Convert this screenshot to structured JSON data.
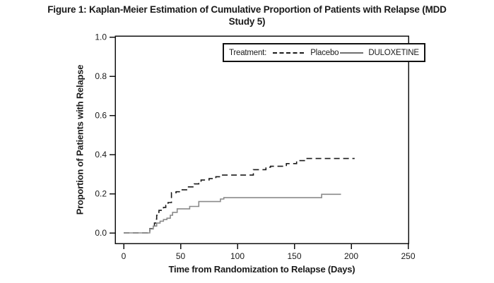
{
  "header": {
    "line1": "Figure 1: Kaplan-Meier Estimation of Cumulative Proportion of Patients with Relapse (MDD",
    "line2": "Study 5)"
  },
  "legend": {
    "title": "Treatment:",
    "entries": [
      {
        "label": "Placebo",
        "style": "dashed"
      },
      {
        "label": "DULOXETINE",
        "style": "solid"
      }
    ]
  },
  "chart_data": {
    "type": "line",
    "variant": "kaplan-meier-step",
    "title": "Figure 1: Kaplan-Meier Estimation of Cumulative Proportion of Patients with Relapse (MDD Study 5)",
    "xlabel": "Time from Randomization to Relapse (Days)",
    "ylabel": "Proportion of Patients with Relapse",
    "xlim": [
      0,
      250
    ],
    "ylim": [
      0.0,
      1.0
    ],
    "x_ticks": [
      0,
      50,
      100,
      150,
      200,
      250
    ],
    "y_ticks": [
      0.0,
      0.2,
      0.4,
      0.6,
      0.8,
      1.0
    ],
    "grid": false,
    "legend_position": "top-right-inside",
    "colors": {
      "placebo_line": "#1a1a1a",
      "duloxetine_line": "#8a8a8a",
      "frame": "#111111"
    },
    "series": [
      {
        "name": "Placebo",
        "line_style": "dashed",
        "color": "#1a1a1a",
        "points": [
          [
            0,
            0
          ],
          [
            20,
            0
          ],
          [
            21,
            0.01
          ],
          [
            23,
            0.022
          ],
          [
            25,
            0.035
          ],
          [
            27,
            0.05
          ],
          [
            28,
            0.07
          ],
          [
            29,
            0.09
          ],
          [
            30,
            0.105
          ],
          [
            31,
            0.115
          ],
          [
            33,
            0.125
          ],
          [
            35,
            0.13
          ],
          [
            37,
            0.14
          ],
          [
            39,
            0.155
          ],
          [
            42,
            0.205
          ],
          [
            46,
            0.21
          ],
          [
            50,
            0.22
          ],
          [
            56,
            0.235
          ],
          [
            62,
            0.25
          ],
          [
            66,
            0.26
          ],
          [
            68,
            0.27
          ],
          [
            75,
            0.277
          ],
          [
            81,
            0.287
          ],
          [
            85,
            0.295
          ],
          [
            114,
            0.323
          ],
          [
            125,
            0.335
          ],
          [
            129,
            0.34
          ],
          [
            143,
            0.354
          ],
          [
            152,
            0.369
          ],
          [
            160,
            0.38
          ],
          [
            203,
            0.38
          ]
        ]
      },
      {
        "name": "DULOXETINE",
        "line_style": "solid",
        "color": "#8a8a8a",
        "points": [
          [
            0,
            0
          ],
          [
            21,
            0
          ],
          [
            23,
            0.02
          ],
          [
            26,
            0.035
          ],
          [
            29,
            0.05
          ],
          [
            32,
            0.06
          ],
          [
            35,
            0.068
          ],
          [
            38,
            0.075
          ],
          [
            41,
            0.09
          ],
          [
            43,
            0.105
          ],
          [
            47,
            0.123
          ],
          [
            58,
            0.135
          ],
          [
            66,
            0.16
          ],
          [
            85,
            0.173
          ],
          [
            88,
            0.18
          ],
          [
            174,
            0.197
          ],
          [
            191,
            0.197
          ]
        ]
      }
    ]
  }
}
